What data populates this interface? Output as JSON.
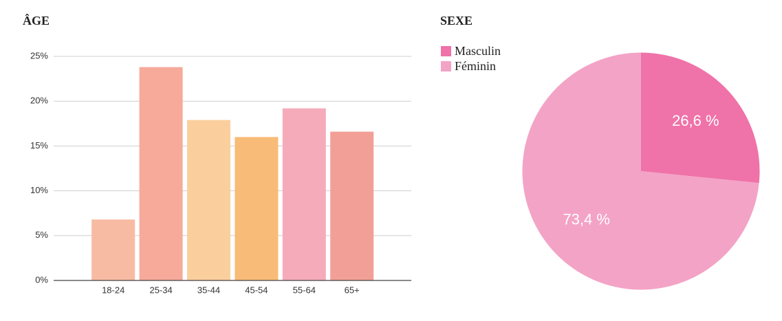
{
  "chart_data": [
    {
      "type": "bar",
      "title": "ÂGE",
      "categories": [
        "18-24",
        "25-34",
        "35-44",
        "45-54",
        "55-64",
        "65+"
      ],
      "values": [
        6.8,
        23.8,
        17.9,
        16.0,
        19.2,
        16.6
      ],
      "colors": [
        "#f7bba3",
        "#f7a99a",
        "#fbcf9d",
        "#f9bb78",
        "#f5abb9",
        "#f2a097"
      ],
      "ylim": [
        0,
        25
      ],
      "yticks": [
        {
          "value": 0,
          "label": "0%"
        },
        {
          "value": 5,
          "label": "5%"
        },
        {
          "value": 10,
          "label": "10%"
        },
        {
          "value": 15,
          "label": "15%"
        },
        {
          "value": 20,
          "label": "20%"
        },
        {
          "value": 25,
          "label": "25%"
        }
      ],
      "grid": true
    },
    {
      "type": "pie",
      "title": "SEXE",
      "categories": [
        "Masculin",
        "Féminin"
      ],
      "values": [
        26.6,
        73.4
      ],
      "value_labels": [
        "26,6 %",
        "73,4 %"
      ],
      "colors": [
        "#ef72a8",
        "#f3a3c6"
      ],
      "legend": "top-left"
    }
  ]
}
